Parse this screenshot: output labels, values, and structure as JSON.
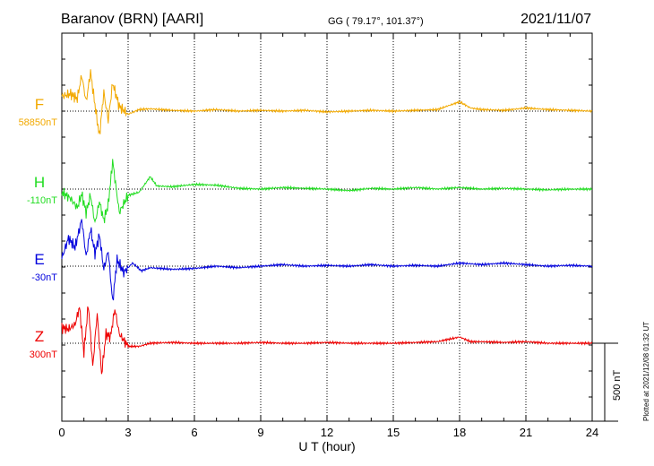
{
  "header": {
    "station": "Baranov (BRN)  [AARI]",
    "coords": "GG ( 79.17°, 101.37°)",
    "date": "2021/11/07"
  },
  "footer_note": "Plotted at 2021/12/08 01:32 UT",
  "chart_data": {
    "type": "line",
    "xlabel": "U T (hour)",
    "xlim": [
      0,
      24
    ],
    "xticks": [
      "0",
      "3",
      "6",
      "9",
      "12",
      "15",
      "18",
      "21",
      "24"
    ],
    "scale_bar_label": "500 nT",
    "scale_bar_nT": 500,
    "series": [
      {
        "name": "F",
        "baseline_label": "58850nT",
        "color": "#f2a900",
        "x": [
          0,
          0.4,
          0.7,
          0.9,
          1.1,
          1.3,
          1.5,
          1.7,
          1.9,
          2.1,
          2.3,
          2.6,
          3.0,
          3.5,
          4.0,
          5.0,
          6.0,
          7.0,
          8.0,
          9.0,
          10.0,
          11.0,
          12.0,
          13.0,
          14.0,
          15.0,
          16.0,
          17.0,
          18.0,
          18.5,
          19.0,
          20.0,
          21.0,
          22.0,
          23.0,
          24.0
        ],
        "values": [
          95,
          110,
          80,
          230,
          60,
          250,
          40,
          -160,
          120,
          -60,
          180,
          30,
          -20,
          10,
          15,
          5,
          0,
          10,
          0,
          5,
          0,
          5,
          -5,
          0,
          5,
          0,
          5,
          10,
          60,
          20,
          10,
          5,
          20,
          10,
          5,
          0
        ]
      },
      {
        "name": "H",
        "baseline_label": "-110nT",
        "color": "#22dd22",
        "x": [
          0,
          0.4,
          0.7,
          0.9,
          1.1,
          1.3,
          1.5,
          1.7,
          1.9,
          2.1,
          2.3,
          2.6,
          3.0,
          3.5,
          4.0,
          4.3,
          5.0,
          6.0,
          7.0,
          8.0,
          9.0,
          10.0,
          11.0,
          12.0,
          13.0,
          14.0,
          15.0,
          16.0,
          17.0,
          18.0,
          19.0,
          20.0,
          21.0,
          22.0,
          23.0,
          24.0
        ],
        "values": [
          -20,
          -60,
          -120,
          -30,
          -150,
          -40,
          -220,
          -80,
          -200,
          -100,
          180,
          -150,
          -40,
          -20,
          80,
          20,
          15,
          30,
          25,
          5,
          0,
          10,
          5,
          0,
          -10,
          5,
          0,
          10,
          0,
          10,
          0,
          5,
          0,
          -5,
          0,
          0
        ]
      },
      {
        "name": "E",
        "baseline_label": "-30nT",
        "color": "#0000dd",
        "x": [
          0,
          0.3,
          0.6,
          0.9,
          1.1,
          1.3,
          1.5,
          1.7,
          1.9,
          2.1,
          2.3,
          2.5,
          2.8,
          3.2,
          3.6,
          4.0,
          5.0,
          6.0,
          7.0,
          8.0,
          9.0,
          10.0,
          11.0,
          12.0,
          13.0,
          14.0,
          15.0,
          16.0,
          17.0,
          18.0,
          19.0,
          20.0,
          21.0,
          22.0,
          23.0,
          24.0
        ],
        "values": [
          50,
          180,
          120,
          300,
          60,
          240,
          80,
          200,
          -20,
          100,
          -230,
          40,
          -40,
          20,
          -30,
          -10,
          -20,
          -15,
          0,
          -10,
          0,
          10,
          0,
          5,
          0,
          10,
          0,
          5,
          0,
          20,
          10,
          20,
          10,
          0,
          5,
          0
        ]
      },
      {
        "name": "Z",
        "baseline_label": "300nT",
        "color": "#ee0000",
        "x": [
          0,
          0.3,
          0.6,
          0.8,
          1.0,
          1.2,
          1.4,
          1.6,
          1.8,
          2.0,
          2.2,
          2.4,
          2.6,
          3.0,
          3.5,
          4.0,
          5.0,
          6.0,
          7.0,
          8.0,
          9.0,
          10.0,
          11.0,
          12.0,
          13.0,
          14.0,
          15.0,
          16.0,
          17.0,
          18.0,
          18.5,
          19.0,
          20.0,
          21.0,
          22.0,
          23.0,
          24.0
        ],
        "values": [
          100,
          90,
          120,
          230,
          -60,
          250,
          -150,
          190,
          -200,
          60,
          40,
          220,
          60,
          -20,
          -20,
          0,
          5,
          0,
          0,
          0,
          5,
          0,
          0,
          5,
          0,
          0,
          0,
          5,
          10,
          40,
          10,
          10,
          5,
          10,
          0,
          0,
          0
        ]
      }
    ],
    "grid": "dotted vertical at every 3 h"
  }
}
